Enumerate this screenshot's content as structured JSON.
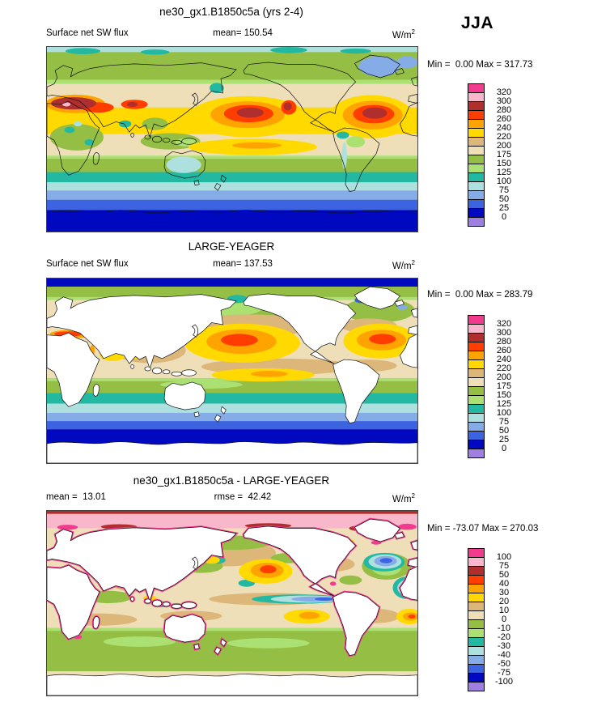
{
  "season_label": "JJA",
  "palette": [
    "#F23A8F",
    "#F9B7CB",
    "#B02E2E",
    "#FF3D00",
    "#FFA300",
    "#FFD900",
    "#DDB77A",
    "#EFDFB9",
    "#94BE44",
    "#ABE173",
    "#23B8A2",
    "#AEE0E0",
    "#86ACE8",
    "#3C64E0",
    "#0008C0",
    "#9F80E0"
  ],
  "panels": [
    {
      "title": "ne30_gx1.B1850c5a (yrs 2-4)",
      "left_text": "Surface net SW flux",
      "center_text": "mean= 150.54",
      "units_base": "W/m",
      "units_exp": "2",
      "minmax_text": "Min =  0.00 Max = 317.73",
      "ticks": [
        "320",
        "300",
        "280",
        "260",
        "240",
        "220",
        "200",
        "175",
        "150",
        "125",
        "100",
        "75",
        "50",
        "25",
        "0"
      ]
    },
    {
      "title": "LARGE-YEAGER",
      "left_text": "Surface net SW flux",
      "center_text": "mean= 137.53",
      "units_base": "W/m",
      "units_exp": "2",
      "minmax_text": "Min =  0.00 Max = 283.79",
      "ticks": [
        "320",
        "300",
        "280",
        "260",
        "240",
        "220",
        "200",
        "175",
        "150",
        "125",
        "100",
        "75",
        "50",
        "25",
        "0"
      ]
    },
    {
      "title": "ne30_gx1.B1850c5a - LARGE-YEAGER",
      "left_text": "mean =  13.01",
      "center_text": "rmse =  42.42",
      "units_base": "W/m",
      "units_exp": "2",
      "minmax_text": "Min = -73.07 Max = 270.03",
      "ticks": [
        "100",
        "75",
        "50",
        "40",
        "30",
        "20",
        "10",
        "0",
        "-10",
        "-20",
        "-30",
        "-40",
        "-50",
        "-75",
        "-100"
      ]
    }
  ],
  "chart_data": [
    {
      "type": "heatmap",
      "subtype": "filled-contour global lat-lon map",
      "title": "ne30_gx1.B1850c5a (yrs 2-4)",
      "variable": "Surface net SW flux",
      "season": "JJA",
      "units": "W/m^2",
      "mean": 150.54,
      "min": 0.0,
      "max": 317.73,
      "contour_levels": [
        0,
        25,
        50,
        75,
        100,
        125,
        150,
        175,
        200,
        220,
        240,
        260,
        280,
        300,
        320
      ],
      "legend_position": "right",
      "notes": "Model field over land and ocean; dark red maxima over Mediterranean/Middle East, NE subtropical Pacific and subtropical North Atlantic; dark blue minima over southern high latitudes"
    },
    {
      "type": "heatmap",
      "subtype": "filled-contour global lat-lon map",
      "title": "LARGE-YEAGER",
      "variable": "Surface net SW flux",
      "season": "JJA",
      "units": "W/m^2",
      "mean": 137.53,
      "min": 0.0,
      "max": 283.79,
      "contour_levels": [
        0,
        25,
        50,
        75,
        100,
        125,
        150,
        175,
        200,
        220,
        240,
        260,
        280,
        300,
        320
      ],
      "legend_position": "right",
      "notes": "Observational ocean-only field; continents masked white; orange-red maxima in subtropical North Pacific and North Atlantic; dark blue at Arctic and Antarctic margins"
    },
    {
      "type": "heatmap",
      "subtype": "filled-contour global lat-lon difference map",
      "title": "ne30_gx1.B1850c5a - LARGE-YEAGER",
      "variable": "Surface net SW flux difference",
      "season": "JJA",
      "units": "W/m^2",
      "mean": 13.01,
      "rmse": 42.42,
      "min": -73.07,
      "max": 270.03,
      "contour_levels": [
        -100,
        -75,
        -50,
        -40,
        -30,
        -20,
        -10,
        0,
        10,
        20,
        30,
        40,
        50,
        75,
        100
      ],
      "legend_position": "right",
      "notes": "Pink/red positive band along Arctic; green negative band in southern mid-latitudes; blue negative cells in N Atlantic, equatorial E Pacific and S Atlantic; magenta fringes along coastlines"
    }
  ]
}
